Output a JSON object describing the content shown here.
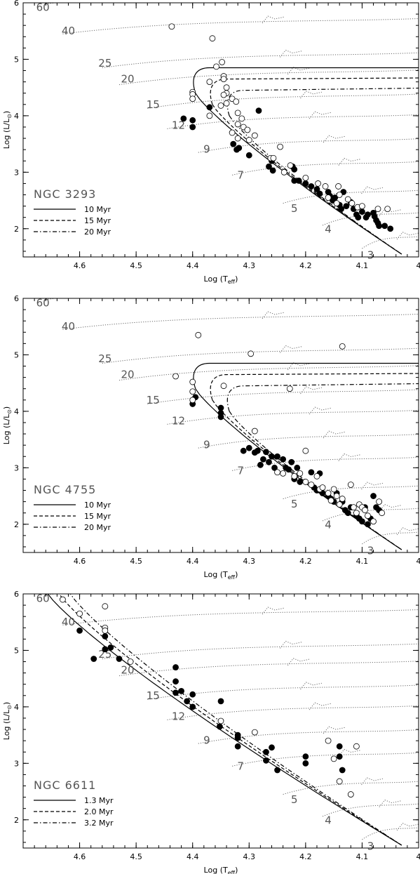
{
  "chart_data": [
    {
      "type": "scatter",
      "title": "NGC 3293",
      "xlabel": "Log (T_eff)",
      "ylabel": "Log (L/L_sun)",
      "xlim": [
        4.7,
        4.0
      ],
      "ylim": [
        1.5,
        6.0
      ],
      "xticks": [
        4.6,
        4.5,
        4.4,
        4.3,
        4.2,
        4.1,
        4.0
      ],
      "yticks": [
        2,
        3,
        4,
        5,
        6
      ],
      "track_masses": [
        "60",
        "40",
        "25",
        "20",
        "15",
        "12",
        "9",
        "7",
        "5",
        "4",
        "3"
      ],
      "isochrones": [
        {
          "name": "10 Myr",
          "style": "solid"
        },
        {
          "name": "15 Myr",
          "style": "dashed"
        },
        {
          "name": "20 Myr",
          "style": "dash-dot"
        }
      ],
      "series": [
        {
          "name": "filled",
          "marker": "filled-circle",
          "points": [
            [
              4.416,
              3.95
            ],
            [
              4.4,
              3.92
            ],
            [
              4.4,
              3.8
            ],
            [
              4.37,
              4.15
            ],
            [
              4.328,
              3.5
            ],
            [
              4.322,
              3.4
            ],
            [
              4.318,
              3.43
            ],
            [
              4.3,
              3.3
            ],
            [
              4.283,
              4.09
            ],
            [
              4.265,
              3.1
            ],
            [
              4.26,
              3.2
            ],
            [
              4.258,
              3.03
            ],
            [
              4.223,
              3.1
            ],
            [
              4.22,
              3.05
            ],
            [
              4.22,
              2.85
            ],
            [
              4.212,
              2.85
            ],
            [
              4.2,
              2.8
            ],
            [
              4.19,
              2.75
            ],
            [
              4.18,
              2.7
            ],
            [
              4.175,
              2.62
            ],
            [
              4.16,
              2.65
            ],
            [
              4.157,
              2.58
            ],
            [
              4.152,
              2.5
            ],
            [
              4.148,
              2.55
            ],
            [
              4.14,
              2.42
            ],
            [
              4.137,
              2.35
            ],
            [
              4.133,
              2.65
            ],
            [
              4.128,
              2.4
            ],
            [
              4.12,
              2.47
            ],
            [
              4.115,
              2.35
            ],
            [
              4.11,
              2.25
            ],
            [
              4.107,
              2.2
            ],
            [
              4.1,
              2.3
            ],
            [
              4.093,
              2.2
            ],
            [
              4.09,
              2.25
            ],
            [
              4.08,
              2.28
            ],
            [
              4.078,
              2.22
            ],
            [
              4.075,
              2.15
            ],
            [
              4.072,
              2.1
            ],
            [
              4.07,
              2.05
            ],
            [
              4.06,
              2.05
            ],
            [
              4.05,
              2.0
            ]
          ]
        },
        {
          "name": "open",
          "marker": "open-circle",
          "points": [
            [
              4.437,
              5.58
            ],
            [
              4.365,
              5.37
            ],
            [
              4.358,
              4.87
            ],
            [
              4.348,
              4.95
            ],
            [
              4.37,
              4.6
            ],
            [
              4.4,
              4.42
            ],
            [
              4.4,
              4.38
            ],
            [
              4.4,
              4.3
            ],
            [
              4.37,
              4.0
            ],
            [
              4.345,
              4.7
            ],
            [
              4.345,
              4.65
            ],
            [
              4.34,
              4.5
            ],
            [
              4.34,
              4.4
            ],
            [
              4.345,
              4.37
            ],
            [
              4.33,
              4.3
            ],
            [
              4.323,
              4.25
            ],
            [
              4.34,
              4.22
            ],
            [
              4.35,
              4.18
            ],
            [
              4.32,
              4.05
            ],
            [
              4.313,
              3.95
            ],
            [
              4.32,
              3.85
            ],
            [
              4.31,
              3.8
            ],
            [
              4.303,
              3.75
            ],
            [
              4.29,
              3.65
            ],
            [
              4.33,
              3.7
            ],
            [
              4.3,
              3.57
            ],
            [
              4.32,
              3.6
            ],
            [
              4.245,
              3.45
            ],
            [
              4.262,
              3.25
            ],
            [
              4.257,
              3.25
            ],
            [
              4.238,
              3.0
            ],
            [
              4.227,
              3.12
            ],
            [
              4.2,
              2.9
            ],
            [
              4.178,
              2.8
            ],
            [
              4.165,
              2.75
            ],
            [
              4.142,
              2.75
            ],
            [
              4.14,
              2.6
            ],
            [
              4.16,
              2.55
            ],
            [
              4.145,
              2.45
            ],
            [
              4.125,
              2.52
            ],
            [
              4.118,
              2.45
            ],
            [
              4.108,
              2.38
            ],
            [
              4.1,
              2.4
            ],
            [
              4.072,
              2.35
            ],
            [
              4.055,
              2.35
            ]
          ]
        }
      ]
    },
    {
      "type": "scatter",
      "title": "NGC 4755",
      "xlabel": "Log (T_eff)",
      "ylabel": "Log (L/L_sun)",
      "xlim": [
        4.7,
        4.0
      ],
      "ylim": [
        1.5,
        6.0
      ],
      "xticks": [
        4.6,
        4.5,
        4.4,
        4.3,
        4.2,
        4.1,
        4.0
      ],
      "yticks": [
        2,
        3,
        4,
        5,
        6
      ],
      "track_masses": [
        "60",
        "40",
        "25",
        "20",
        "15",
        "12",
        "9",
        "7",
        "5",
        "4",
        "3"
      ],
      "isochrones": [
        {
          "name": "10 Myr",
          "style": "solid"
        },
        {
          "name": "15 Myr",
          "style": "dashed"
        },
        {
          "name": "20 Myr",
          "style": "dash-dot"
        }
      ],
      "series": [
        {
          "name": "filled",
          "marker": "filled-circle",
          "points": [
            [
              4.4,
              4.13
            ],
            [
              4.395,
              4.25
            ],
            [
              4.35,
              4.06
            ],
            [
              4.35,
              3.97
            ],
            [
              4.35,
              3.9
            ],
            [
              4.31,
              3.3
            ],
            [
              4.3,
              3.35
            ],
            [
              4.29,
              3.27
            ],
            [
              4.285,
              3.3
            ],
            [
              4.28,
              3.05
            ],
            [
              4.275,
              3.15
            ],
            [
              4.27,
              3.28
            ],
            [
              4.265,
              3.1
            ],
            [
              4.26,
              3.2
            ],
            [
              4.255,
              3.0
            ],
            [
              4.25,
              3.2
            ],
            [
              4.24,
              3.15
            ],
            [
              4.235,
              3.0
            ],
            [
              4.23,
              2.97
            ],
            [
              4.225,
              3.1
            ],
            [
              4.22,
              2.8
            ],
            [
              4.215,
              3.0
            ],
            [
              4.21,
              2.75
            ],
            [
              4.19,
              2.92
            ],
            [
              4.185,
              2.65
            ],
            [
              4.18,
              2.6
            ],
            [
              4.175,
              2.9
            ],
            [
              4.17,
              2.55
            ],
            [
              4.16,
              2.5
            ],
            [
              4.155,
              2.45
            ],
            [
              4.15,
              2.4
            ],
            [
              4.145,
              2.55
            ],
            [
              4.14,
              2.35
            ],
            [
              4.135,
              2.4
            ],
            [
              4.13,
              2.25
            ],
            [
              4.125,
              2.2
            ],
            [
              4.12,
              2.3
            ],
            [
              4.11,
              2.15
            ],
            [
              4.105,
              2.1
            ],
            [
              4.1,
              2.05
            ],
            [
              4.095,
              2.3
            ],
            [
              4.09,
              2.0
            ],
            [
              4.085,
              2.1
            ],
            [
              4.08,
              2.5
            ],
            [
              4.075,
              2.3
            ],
            [
              4.07,
              2.25
            ]
          ]
        },
        {
          "name": "open",
          "marker": "open-circle",
          "points": [
            [
              4.39,
              5.35
            ],
            [
              4.297,
              5.02
            ],
            [
              4.135,
              5.15
            ],
            [
              4.43,
              4.62
            ],
            [
              4.4,
              4.52
            ],
            [
              4.4,
              4.35
            ],
            [
              4.4,
              4.2
            ],
            [
              4.345,
              4.45
            ],
            [
              4.228,
              4.4
            ],
            [
              4.29,
              3.65
            ],
            [
              4.2,
              3.3
            ],
            [
              4.25,
              2.92
            ],
            [
              4.24,
              2.9
            ],
            [
              4.22,
              2.85
            ],
            [
              4.21,
              2.9
            ],
            [
              4.2,
              2.75
            ],
            [
              4.19,
              2.7
            ],
            [
              4.18,
              2.85
            ],
            [
              4.175,
              2.62
            ],
            [
              4.17,
              2.65
            ],
            [
              4.16,
              2.55
            ],
            [
              4.155,
              2.42
            ],
            [
              4.15,
              2.62
            ],
            [
              4.145,
              2.5
            ],
            [
              4.14,
              2.35
            ],
            [
              4.135,
              2.45
            ],
            [
              4.12,
              2.7
            ],
            [
              4.115,
              2.3
            ],
            [
              4.11,
              2.2
            ],
            [
              4.105,
              2.35
            ],
            [
              4.1,
              2.3
            ],
            [
              4.095,
              2.25
            ],
            [
              4.09,
              2.15
            ],
            [
              4.08,
              2.05
            ],
            [
              4.07,
              2.4
            ],
            [
              4.065,
              2.2
            ]
          ]
        }
      ]
    },
    {
      "type": "scatter",
      "title": "NGC 6611",
      "xlabel": "Log (T_eff)",
      "ylabel": "Log (L/L_sun)",
      "xlim": [
        4.7,
        4.0
      ],
      "ylim": [
        1.5,
        6.0
      ],
      "xticks": [
        4.6,
        4.5,
        4.4,
        4.3,
        4.2,
        4.1,
        4.0
      ],
      "yticks": [
        2,
        3,
        4,
        5,
        6
      ],
      "track_masses": [
        "60",
        "40",
        "25",
        "20",
        "15",
        "12",
        "9",
        "7",
        "5",
        "4",
        "3"
      ],
      "isochrones": [
        {
          "name": "1.3 Myr",
          "style": "solid"
        },
        {
          "name": "2.0 Myr",
          "style": "dashed"
        },
        {
          "name": "3.2 Myr",
          "style": "dash-dot"
        }
      ],
      "series": [
        {
          "name": "filled",
          "marker": "filled-circle",
          "points": [
            [
              4.6,
              5.35
            ],
            [
              4.555,
              5.25
            ],
            [
              4.555,
              5.02
            ],
            [
              4.545,
              5.05
            ],
            [
              4.575,
              4.85
            ],
            [
              4.53,
              4.85
            ],
            [
              4.43,
              4.7
            ],
            [
              4.43,
              4.45
            ],
            [
              4.43,
              4.25
            ],
            [
              4.42,
              4.28
            ],
            [
              4.41,
              4.1
            ],
            [
              4.4,
              4.22
            ],
            [
              4.4,
              4.0
            ],
            [
              4.35,
              4.1
            ],
            [
              4.352,
              3.65
            ],
            [
              4.32,
              3.5
            ],
            [
              4.32,
              3.45
            ],
            [
              4.32,
              3.3
            ],
            [
              4.27,
              3.2
            ],
            [
              4.26,
              3.28
            ],
            [
              4.27,
              3.05
            ],
            [
              4.25,
              2.88
            ],
            [
              4.2,
              3.12
            ],
            [
              4.2,
              3.0
            ],
            [
              4.14,
              3.3
            ],
            [
              4.14,
              3.12
            ],
            [
              4.135,
              2.88
            ]
          ]
        },
        {
          "name": "open",
          "marker": "open-circle",
          "points": [
            [
              4.63,
              5.9
            ],
            [
              4.555,
              5.78
            ],
            [
              4.6,
              5.65
            ],
            [
              4.555,
              5.4
            ],
            [
              4.555,
              5.35
            ],
            [
              4.51,
              4.8
            ],
            [
              4.35,
              3.75
            ],
            [
              4.29,
              3.55
            ],
            [
              4.16,
              3.4
            ],
            [
              4.15,
              3.08
            ],
            [
              4.11,
              3.3
            ],
            [
              4.14,
              2.68
            ],
            [
              4.12,
              2.45
            ]
          ]
        }
      ]
    }
  ]
}
